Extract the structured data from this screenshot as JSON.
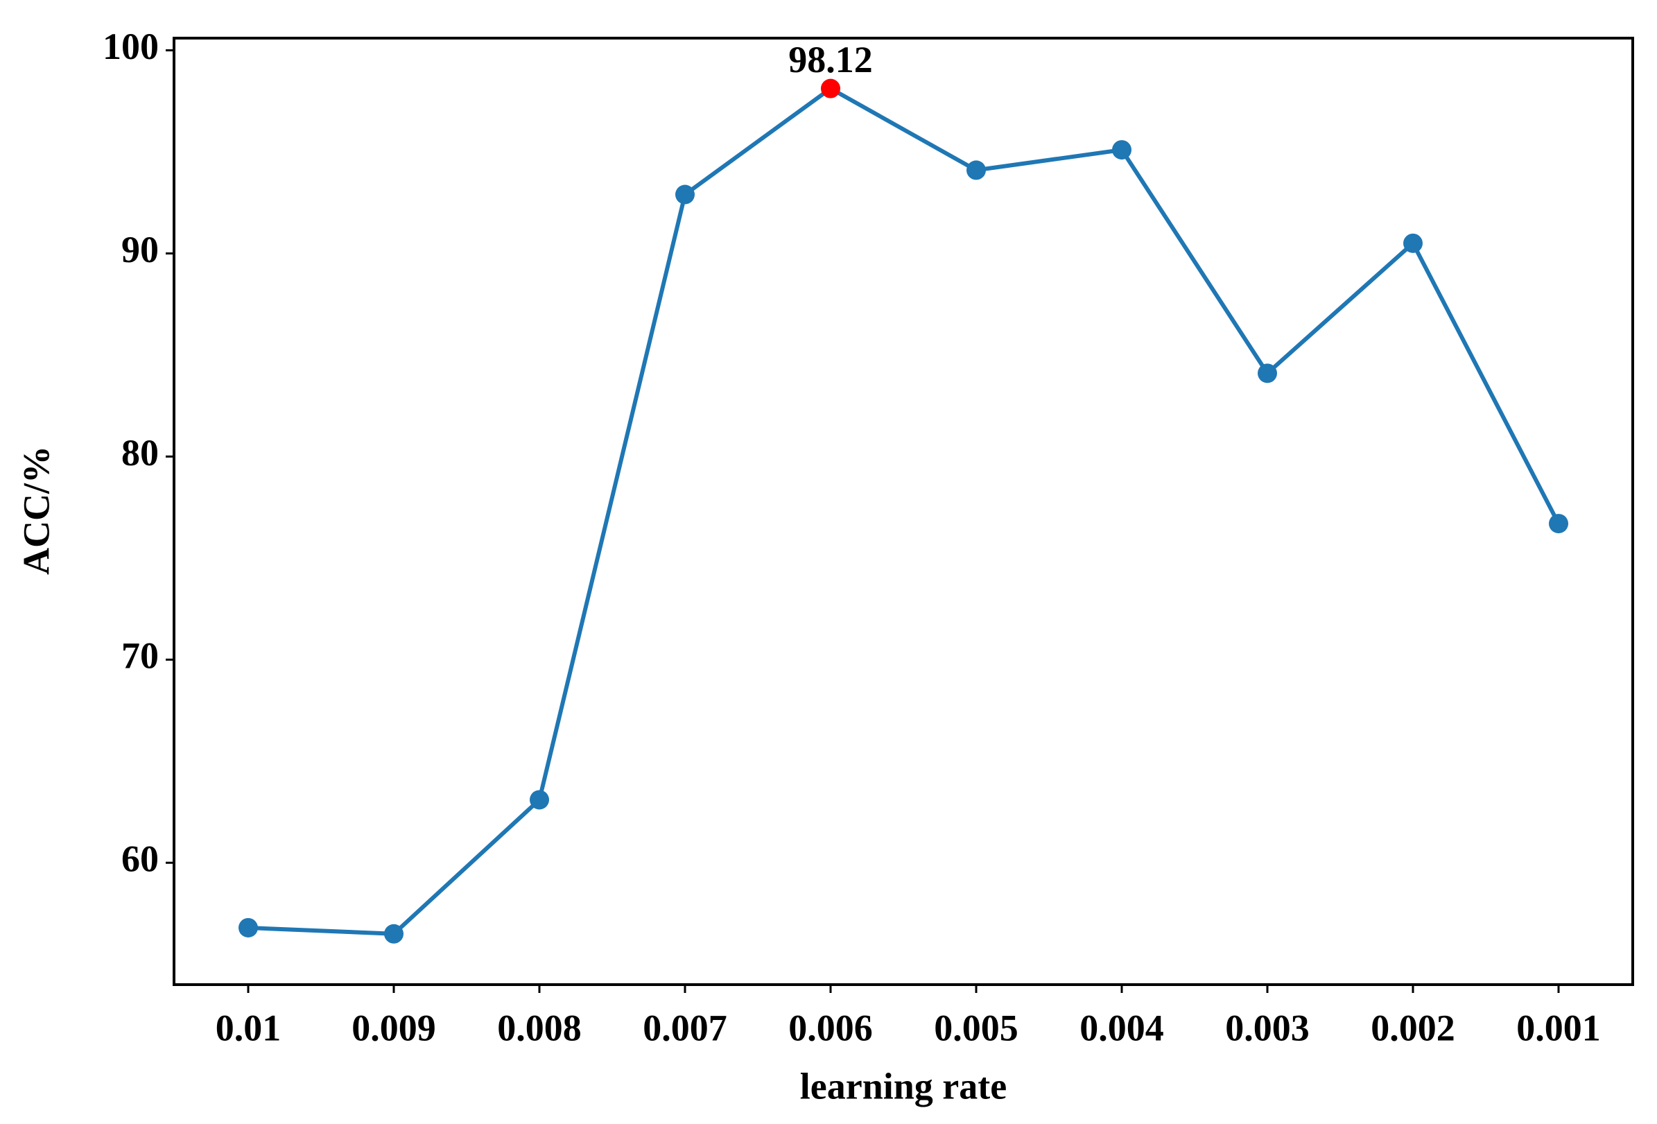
{
  "chart_data": {
    "type": "line",
    "x_label": "learning rate",
    "y_label": "ACC/%",
    "categories": [
      "0.01",
      "0.009",
      "0.008",
      "0.007",
      "0.006",
      "0.005",
      "0.004",
      "0.003",
      "0.002",
      "0.001"
    ],
    "series": [
      {
        "color": "#1f77b4",
        "values": [
          56.8,
          56.5,
          63.1,
          92.9,
          98.12,
          94.1,
          95.1,
          84.1,
          90.5,
          76.7
        ]
      }
    ],
    "highlight": "max",
    "highlight_color": "#ff0000",
    "ylim": [
      54.0,
      100.6
    ],
    "yticks": [
      60,
      70,
      80,
      90,
      100
    ],
    "grid": false
  }
}
